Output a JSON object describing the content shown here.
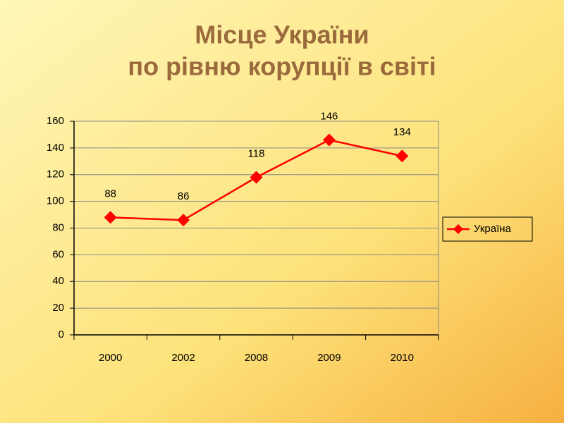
{
  "chart_data": {
    "type": "line",
    "title": "Місце України",
    "subtitle": "по рівню корупції в світі",
    "categories": [
      "2000",
      "2002",
      "2008",
      "2009",
      "2010"
    ],
    "series": [
      {
        "name": "Україна",
        "color": "#ff0000",
        "values": [
          88,
          86,
          118,
          146,
          134
        ]
      }
    ],
    "ylim": [
      0,
      160
    ],
    "yticks": [
      0,
      20,
      40,
      60,
      80,
      100,
      120,
      140,
      160
    ],
    "grid": true,
    "legend": "right"
  }
}
